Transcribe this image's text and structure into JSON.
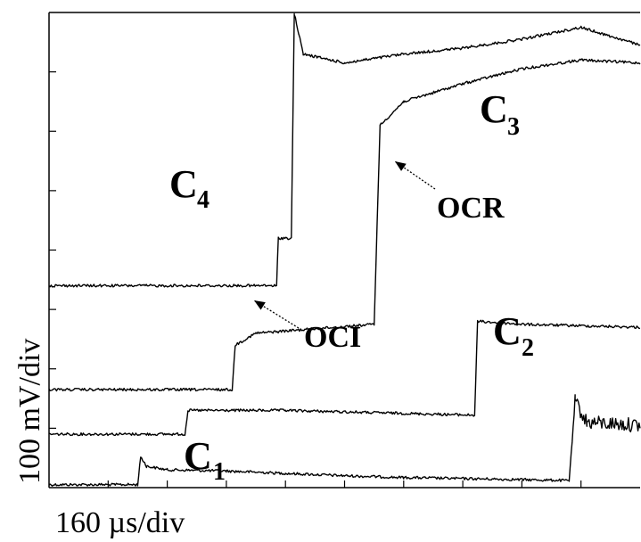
{
  "chart_data": {
    "type": "line",
    "xlabel": "160 µs/div",
    "ylabel": "100 mV/div",
    "xlim": [
      0,
      10
    ],
    "ylim": [
      0,
      8
    ],
    "grid": false,
    "x_divisions": 10,
    "y_divisions": 8,
    "series": [
      {
        "name": "C1",
        "points": [
          [
            0,
            0.05
          ],
          [
            1.5,
            0.05
          ],
          [
            1.55,
            0.52
          ],
          [
            1.65,
            0.36
          ],
          [
            2.0,
            0.3
          ],
          [
            3,
            0.28
          ],
          [
            4,
            0.24
          ],
          [
            5,
            0.2
          ],
          [
            6,
            0.17
          ],
          [
            8.8,
            0.12
          ],
          [
            8.9,
            1.45
          ],
          [
            9.1,
            1.1
          ],
          [
            10,
            1.05
          ]
        ],
        "noisy_from": 8.9
      },
      {
        "name": "C2",
        "points": [
          [
            0,
            0.9
          ],
          [
            2.3,
            0.9
          ],
          [
            2.35,
            1.3
          ],
          [
            4,
            1.3
          ],
          [
            7.2,
            1.22
          ],
          [
            7.25,
            2.8
          ],
          [
            8,
            2.75
          ],
          [
            10,
            2.7
          ]
        ]
      },
      {
        "name": "C3",
        "points": [
          [
            0,
            1.65
          ],
          [
            3.1,
            1.65
          ],
          [
            3.15,
            2.4
          ],
          [
            3.5,
            2.6
          ],
          [
            5.5,
            2.75
          ],
          [
            5.6,
            6.1
          ],
          [
            6,
            6.5
          ],
          [
            7,
            6.8
          ],
          [
            8,
            7.05
          ],
          [
            9,
            7.2
          ],
          [
            10,
            7.15
          ]
        ]
      },
      {
        "name": "C4",
        "points": [
          [
            0,
            3.4
          ],
          [
            3.85,
            3.4
          ],
          [
            3.88,
            4.2
          ],
          [
            4.1,
            4.2
          ],
          [
            4.15,
            7.98
          ],
          [
            4.3,
            7.3
          ],
          [
            5,
            7.15
          ],
          [
            6,
            7.3
          ],
          [
            7,
            7.4
          ],
          [
            8,
            7.55
          ],
          [
            9,
            7.75
          ],
          [
            10,
            7.45
          ]
        ]
      }
    ],
    "annotations": [
      {
        "text": "OCR",
        "x": 5.65,
        "y": 5.5
      },
      {
        "text": "OCI",
        "x": 3.3,
        "y": 2.3
      }
    ]
  },
  "labels": {
    "c1": "C",
    "c1_sub": "1",
    "c2": "C",
    "c2_sub": "2",
    "c3": "C",
    "c3_sub": "3",
    "c4": "C",
    "c4_sub": "4",
    "ocr": "OCR",
    "oci": "OCI"
  }
}
